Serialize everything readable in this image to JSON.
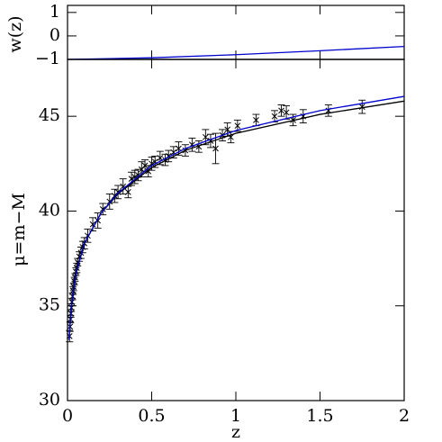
{
  "chart_data": [
    {
      "type": "line",
      "ylabel": "w(z)",
      "xlim": [
        0,
        2
      ],
      "xticks": [
        0,
        0.5,
        1,
        1.5,
        2
      ],
      "ylim": [
        -1,
        1.3
      ],
      "yticks": [
        {
          "value": -1,
          "label": "−1"
        },
        0,
        1
      ],
      "x": [
        0,
        0.5,
        1,
        1.5,
        2
      ],
      "series": [
        {
          "color": "#000000",
          "values": [
            -1,
            -1,
            -1,
            -1,
            -1
          ]
        },
        {
          "color": "#0000cc",
          "values": [
            -1,
            -0.93,
            -0.8,
            -0.63,
            -0.45
          ]
        }
      ]
    },
    {
      "type": "scatter",
      "xlabel": "z",
      "ylabel": "μ=m−M",
      "color": "#000000",
      "xlim": [
        0,
        2
      ],
      "xticks": [
        0,
        0.5,
        1,
        1.5,
        2
      ],
      "ylim": [
        30,
        48
      ],
      "yticks": [
        30,
        35,
        40,
        45
      ],
      "x": [
        0.012,
        0.015,
        0.018,
        0.02,
        0.023,
        0.026,
        0.03,
        0.033,
        0.036,
        0.04,
        0.045,
        0.05,
        0.055,
        0.06,
        0.07,
        0.08,
        0.09,
        0.1,
        0.12,
        0.15,
        0.18,
        0.21,
        0.25,
        0.28,
        0.3,
        0.33,
        0.36,
        0.38,
        0.4,
        0.42,
        0.44,
        0.46,
        0.48,
        0.5,
        0.52,
        0.55,
        0.58,
        0.6,
        0.63,
        0.66,
        0.7,
        0.74,
        0.78,
        0.82,
        0.85,
        0.88,
        0.92,
        0.95,
        0.97,
        1.01,
        1.12,
        1.23,
        1.27,
        1.3,
        1.34,
        1.4,
        1.55,
        1.75
      ],
      "values": [
        33.4,
        33.9,
        34.3,
        34.6,
        34.9,
        35.2,
        35.5,
        35.8,
        36.0,
        36.3,
        36.5,
        36.8,
        37.0,
        37.3,
        37.6,
        37.8,
        38.1,
        38.3,
        38.7,
        39.3,
        39.5,
        40.1,
        40.5,
        40.8,
        41.0,
        41.3,
        41.0,
        41.7,
        41.8,
        41.9,
        42.2,
        42.4,
        42.1,
        42.5,
        42.6,
        42.8,
        42.7,
        42.9,
        43.1,
        43.3,
        43.2,
        43.5,
        43.4,
        43.9,
        43.7,
        43.3,
        44.0,
        44.3,
        43.9,
        44.5,
        44.8,
        45.0,
        45.3,
        45.2,
        44.8,
        45.0,
        45.3,
        45.5
      ],
      "errors": [
        0.3,
        0.25,
        0.2,
        0.2,
        0.2,
        0.2,
        0.18,
        0.2,
        0.2,
        0.2,
        0.2,
        0.2,
        0.25,
        0.2,
        0.25,
        0.3,
        0.3,
        0.3,
        0.35,
        0.35,
        0.4,
        0.3,
        0.4,
        0.35,
        0.35,
        0.4,
        0.3,
        0.35,
        0.35,
        0.3,
        0.4,
        0.3,
        0.3,
        0.35,
        0.3,
        0.35,
        0.3,
        0.3,
        0.3,
        0.35,
        0.3,
        0.35,
        0.3,
        0.4,
        0.35,
        0.8,
        0.3,
        0.35,
        0.3,
        0.3,
        0.3,
        0.3,
        0.3,
        0.35,
        0.3,
        0.35,
        0.3,
        0.35
      ],
      "series": [
        {
          "color": "#000000",
          "x": [
            0.01,
            0.02,
            0.05,
            0.1,
            0.2,
            0.3,
            0.5,
            0.7,
            1,
            1.5,
            2
          ],
          "values": [
            33.2,
            34.7,
            36.7,
            38.3,
            39.9,
            40.9,
            42.3,
            43.2,
            44.1,
            45.1,
            45.8
          ]
        },
        {
          "color": "#0000cc",
          "x": [
            0.01,
            0.02,
            0.05,
            0.1,
            0.2,
            0.3,
            0.5,
            0.7,
            1,
            1.5,
            2
          ],
          "values": [
            33.2,
            34.7,
            36.7,
            38.3,
            39.9,
            40.95,
            42.4,
            43.3,
            44.25,
            45.3,
            46.05
          ]
        }
      ]
    }
  ]
}
